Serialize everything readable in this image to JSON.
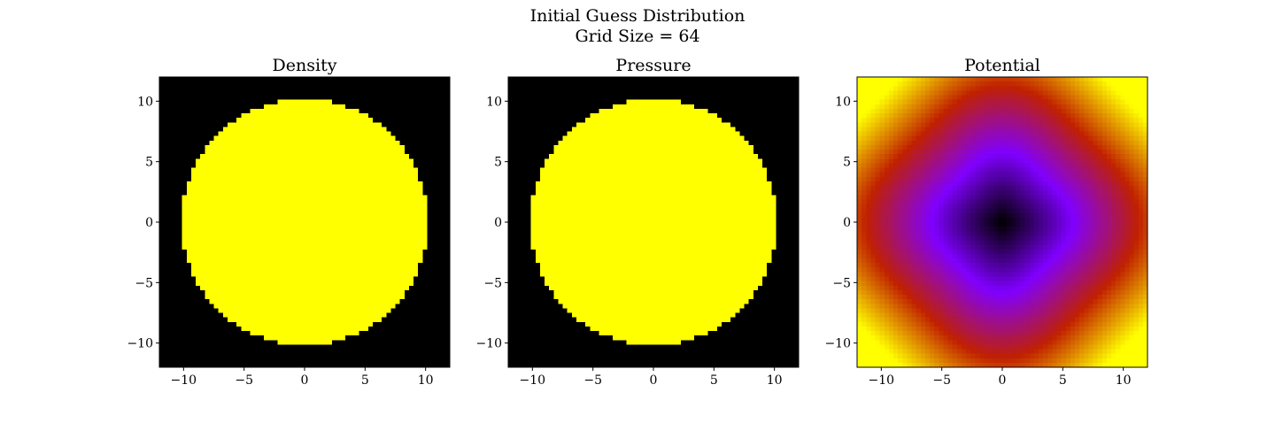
{
  "figure": {
    "title_line1": "Initial Guess Distribution",
    "title_line2": "Grid Size = 64"
  },
  "chart_data": [
    {
      "type": "heatmap",
      "title": "Density",
      "grid_size": 64,
      "xlim": [
        -12,
        12
      ],
      "ylim": [
        -12,
        12
      ],
      "xticks": [
        -10,
        -5,
        0,
        5,
        10
      ],
      "yticks": [
        -10,
        -5,
        0,
        5,
        10
      ],
      "xtick_labels": [
        "−10",
        "−5",
        "0",
        "5",
        "10"
      ],
      "ytick_labels": [
        "−10",
        "−5",
        "0",
        "5",
        "10"
      ],
      "field": "uniform disk",
      "disk_radius": 10.2,
      "inside_color": "#ffff00",
      "outside_color": "#000000"
    },
    {
      "type": "heatmap",
      "title": "Pressure",
      "grid_size": 64,
      "xlim": [
        -12,
        12
      ],
      "ylim": [
        -12,
        12
      ],
      "xticks": [
        -10,
        -5,
        0,
        5,
        10
      ],
      "yticks": [
        -10,
        -5,
        0,
        5,
        10
      ],
      "xtick_labels": [
        "−10",
        "−5",
        "0",
        "5",
        "10"
      ],
      "ytick_labels": [
        "−10",
        "−5",
        "0",
        "5",
        "10"
      ],
      "field": "uniform disk",
      "disk_radius": 10.2,
      "inside_color": "#ffff00",
      "outside_color": "#000000"
    },
    {
      "type": "heatmap",
      "title": "Potential",
      "grid_size": 64,
      "xlim": [
        -12,
        12
      ],
      "ylim": [
        -12,
        12
      ],
      "xticks": [
        -10,
        -5,
        0,
        5,
        10
      ],
      "yticks": [
        -10,
        -5,
        0,
        5,
        10
      ],
      "xtick_labels": [
        "−10",
        "−5",
        "0",
        "5",
        "10"
      ],
      "ytick_labels": [
        "−10",
        "−5",
        "0",
        "5",
        "10"
      ],
      "field": "gravitational potential well, minimum at center",
      "colormap": "gnuplot",
      "colormap_stops": [
        "#000000",
        "#8000ff",
        "#c02000",
        "#ffff00"
      ]
    }
  ]
}
